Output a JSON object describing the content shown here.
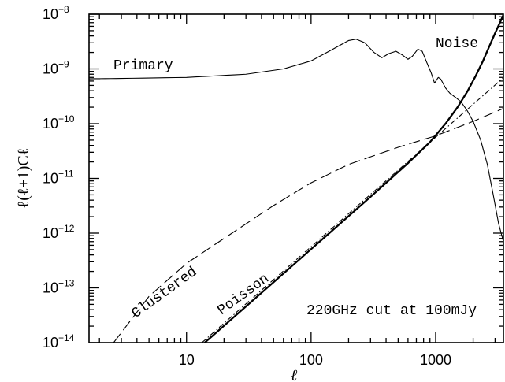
{
  "chart_data": {
    "type": "line",
    "xlabel": "ℓ",
    "ylabel": "ℓ(ℓ+1)Cℓ",
    "x_scale": "log",
    "y_scale": "log",
    "xlim": [
      1.65,
      3500
    ],
    "ylim": [
      1e-14,
      1e-08
    ],
    "x_ticks": [
      {
        "value": 10,
        "label": "10"
      },
      {
        "value": 100,
        "label": "100"
      },
      {
        "value": 1000,
        "label": "1000"
      }
    ],
    "y_ticks": [
      {
        "value": 1e-14,
        "base": "10",
        "exp": "−14"
      },
      {
        "value": 1e-13,
        "base": "10",
        "exp": "−13"
      },
      {
        "value": 1e-12,
        "base": "10",
        "exp": "−12"
      },
      {
        "value": 1e-11,
        "base": "10",
        "exp": "−11"
      },
      {
        "value": 1e-10,
        "base": "10",
        "exp": "−10"
      },
      {
        "value": 1e-09,
        "base": "10",
        "exp": "−9"
      },
      {
        "value": 1e-08,
        "base": "10",
        "exp": "−8"
      }
    ],
    "annotations": [
      "Primary",
      "Noise",
      "Clustered",
      "Poisson",
      "220GHz cut at 100mJy"
    ],
    "series": [
      {
        "name": "Primary",
        "style": "solid-thin",
        "points": [
          [
            1.65,
            6.6e-10
          ],
          [
            3,
            6.7e-10
          ],
          [
            10,
            7e-10
          ],
          [
            30,
            8e-10
          ],
          [
            60,
            1e-09
          ],
          [
            100,
            1.4e-09
          ],
          [
            150,
            2.3e-09
          ],
          [
            200,
            3.3e-09
          ],
          [
            230,
            3.5e-09
          ],
          [
            270,
            3e-09
          ],
          [
            320,
            2e-09
          ],
          [
            370,
            1.6e-09
          ],
          [
            420,
            1.9e-09
          ],
          [
            480,
            2.1e-09
          ],
          [
            540,
            1.8e-09
          ],
          [
            600,
            1.5e-09
          ],
          [
            650,
            1.7e-09
          ],
          [
            720,
            2.3e-09
          ],
          [
            780,
            2.1e-09
          ],
          [
            850,
            1.3e-09
          ],
          [
            920,
            8.5e-10
          ],
          [
            980,
            5.5e-10
          ],
          [
            1050,
            7e-10
          ],
          [
            1100,
            6.5e-10
          ],
          [
            1200,
            4.5e-10
          ],
          [
            1300,
            3.6e-10
          ],
          [
            1450,
            3e-10
          ],
          [
            1600,
            2.5e-10
          ],
          [
            1800,
            1.7e-10
          ],
          [
            2000,
            1.1e-10
          ],
          [
            2300,
            5e-11
          ],
          [
            2600,
            1.8e-11
          ],
          [
            2900,
            5e-12
          ],
          [
            3200,
            1.5e-12
          ],
          [
            3500,
            7e-13
          ]
        ]
      },
      {
        "name": "Noise",
        "style": "solid-thick",
        "points": [
          [
            14,
            1e-14
          ],
          [
            50,
            1.27e-13
          ],
          [
            100,
            5.1e-13
          ],
          [
            300,
            4.6e-12
          ],
          [
            600,
            1.9e-11
          ],
          [
            900,
            4.6e-11
          ],
          [
            1200,
            1e-10
          ],
          [
            1500,
            2e-10
          ],
          [
            1800,
            3.9e-10
          ],
          [
            2100,
            7.5e-10
          ],
          [
            2400,
            1.4e-09
          ],
          [
            2700,
            2.6e-09
          ],
          [
            3000,
            4.5e-09
          ],
          [
            3300,
            7.2e-09
          ],
          [
            3500,
            9.8e-09
          ]
        ]
      },
      {
        "name": "Poisson",
        "style": "dash-dot",
        "points": [
          [
            13.3,
            1e-14
          ],
          [
            30,
            5.1e-14
          ],
          [
            100,
            5.65e-13
          ],
          [
            300,
            5.1e-12
          ],
          [
            1000,
            5.65e-11
          ],
          [
            2000,
            2.26e-10
          ],
          [
            3500,
            6.9e-10
          ]
        ]
      },
      {
        "name": "Clustered",
        "style": "dashed",
        "points": [
          [
            2.6,
            1e-14
          ],
          [
            5,
            7e-14
          ],
          [
            10,
            2.8e-13
          ],
          [
            20,
            8e-13
          ],
          [
            50,
            3.2e-12
          ],
          [
            100,
            8.3e-12
          ],
          [
            200,
            1.8e-11
          ],
          [
            500,
            3.7e-11
          ],
          [
            1000,
            6e-11
          ],
          [
            2000,
            1.1e-10
          ],
          [
            3500,
            1.9e-10
          ]
        ]
      }
    ]
  }
}
